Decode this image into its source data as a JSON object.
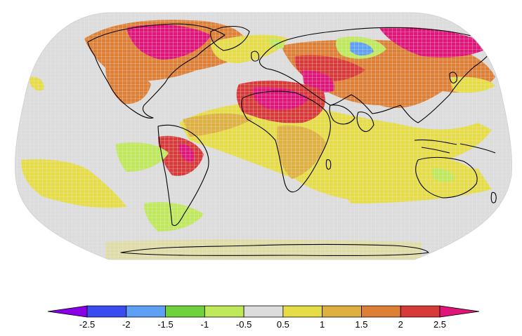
{
  "map": {
    "projection": "Robinson",
    "background_color": "#dcdcdc",
    "coastline_color": "#000000",
    "gridcell_line_color": "#ececec"
  },
  "colorbar": {
    "tick_labels": [
      "-2.5",
      "-2",
      "-1.5",
      "-1",
      "-0.5",
      "0.5",
      "1",
      "1.5",
      "2",
      "2.5"
    ],
    "bins": [
      {
        "range": "< -2.5",
        "color": "#8a00e6"
      },
      {
        "range": "-2.5 to -2",
        "color": "#3a4cf0"
      },
      {
        "range": "-2 to -1.5",
        "color": "#5ea0f5"
      },
      {
        "range": "-1.5 to -1",
        "color": "#6fd23c"
      },
      {
        "range": "-1 to -0.5",
        "color": "#bfe85a"
      },
      {
        "range": "-0.5 to 0.5",
        "color": "#dcdcdc"
      },
      {
        "range": "0.5 to 1",
        "color": "#e6dc46"
      },
      {
        "range": "1 to 1.5",
        "color": "#ddb040"
      },
      {
        "range": "1.5 to 2",
        "color": "#de7f36"
      },
      {
        "range": "2 to 2.5",
        "color": "#d83a3a"
      },
      {
        "range": "> 2.5",
        "color": "#e0157a"
      }
    ]
  }
}
